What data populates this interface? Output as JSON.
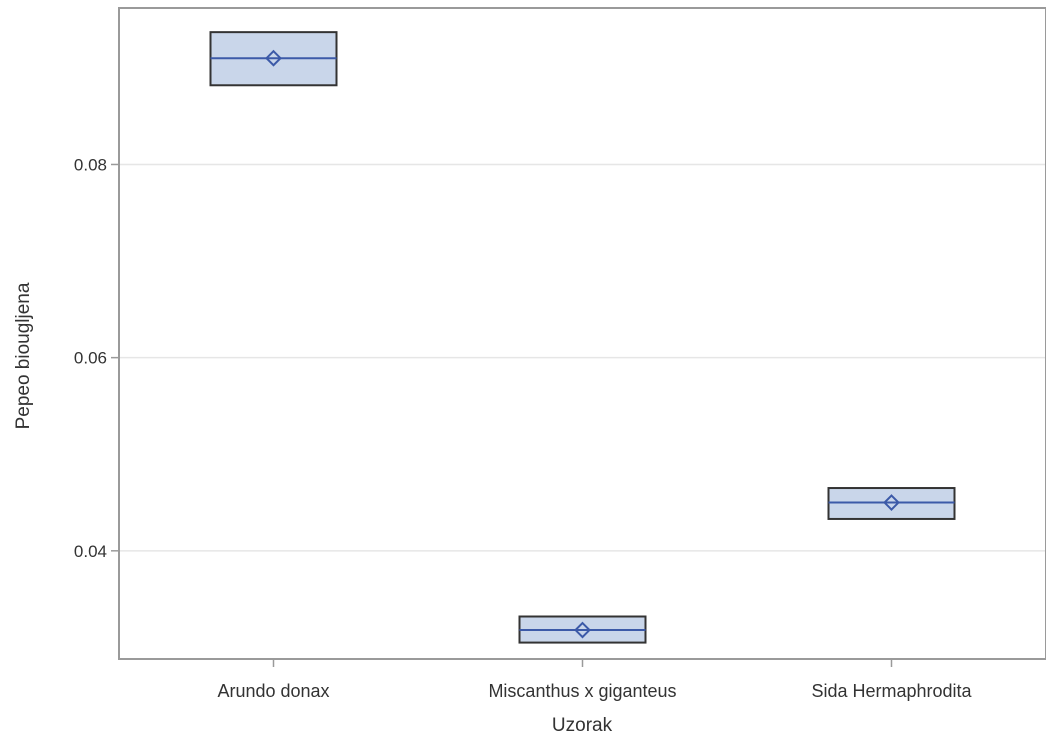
{
  "chart_data": {
    "type": "box",
    "title": "",
    "xlabel": "Uzorak",
    "ylabel": "Pepeo biougljena",
    "categories": [
      "Arundo donax",
      "Miscanthus x giganteus",
      "Sida Hermaphrodita"
    ],
    "boxes": [
      {
        "category": "Arundo donax",
        "q1": 0.0882,
        "median": 0.091,
        "q3": 0.0937,
        "mean": 0.091
      },
      {
        "category": "Miscanthus x giganteus",
        "q1": 0.0305,
        "median": 0.0318,
        "q3": 0.0332,
        "mean": 0.0318
      },
      {
        "category": "Sida Hermaphrodita",
        "q1": 0.0433,
        "median": 0.045,
        "q3": 0.0465,
        "mean": 0.045
      }
    ],
    "yticks": [
      0.04,
      0.06,
      0.08
    ],
    "ytick_labels": [
      "0.04",
      "0.06",
      "0.08"
    ],
    "ylim": [
      0.0288,
      0.0962
    ],
    "grid": true,
    "colors": {
      "box_fill": "#c9d6ea",
      "box_stroke": "#333333",
      "median_line": "#3c5aa8",
      "mean_marker": "#3c5aa8",
      "grid": "#e6e6e6",
      "axis": "#9a9a9a"
    }
  }
}
